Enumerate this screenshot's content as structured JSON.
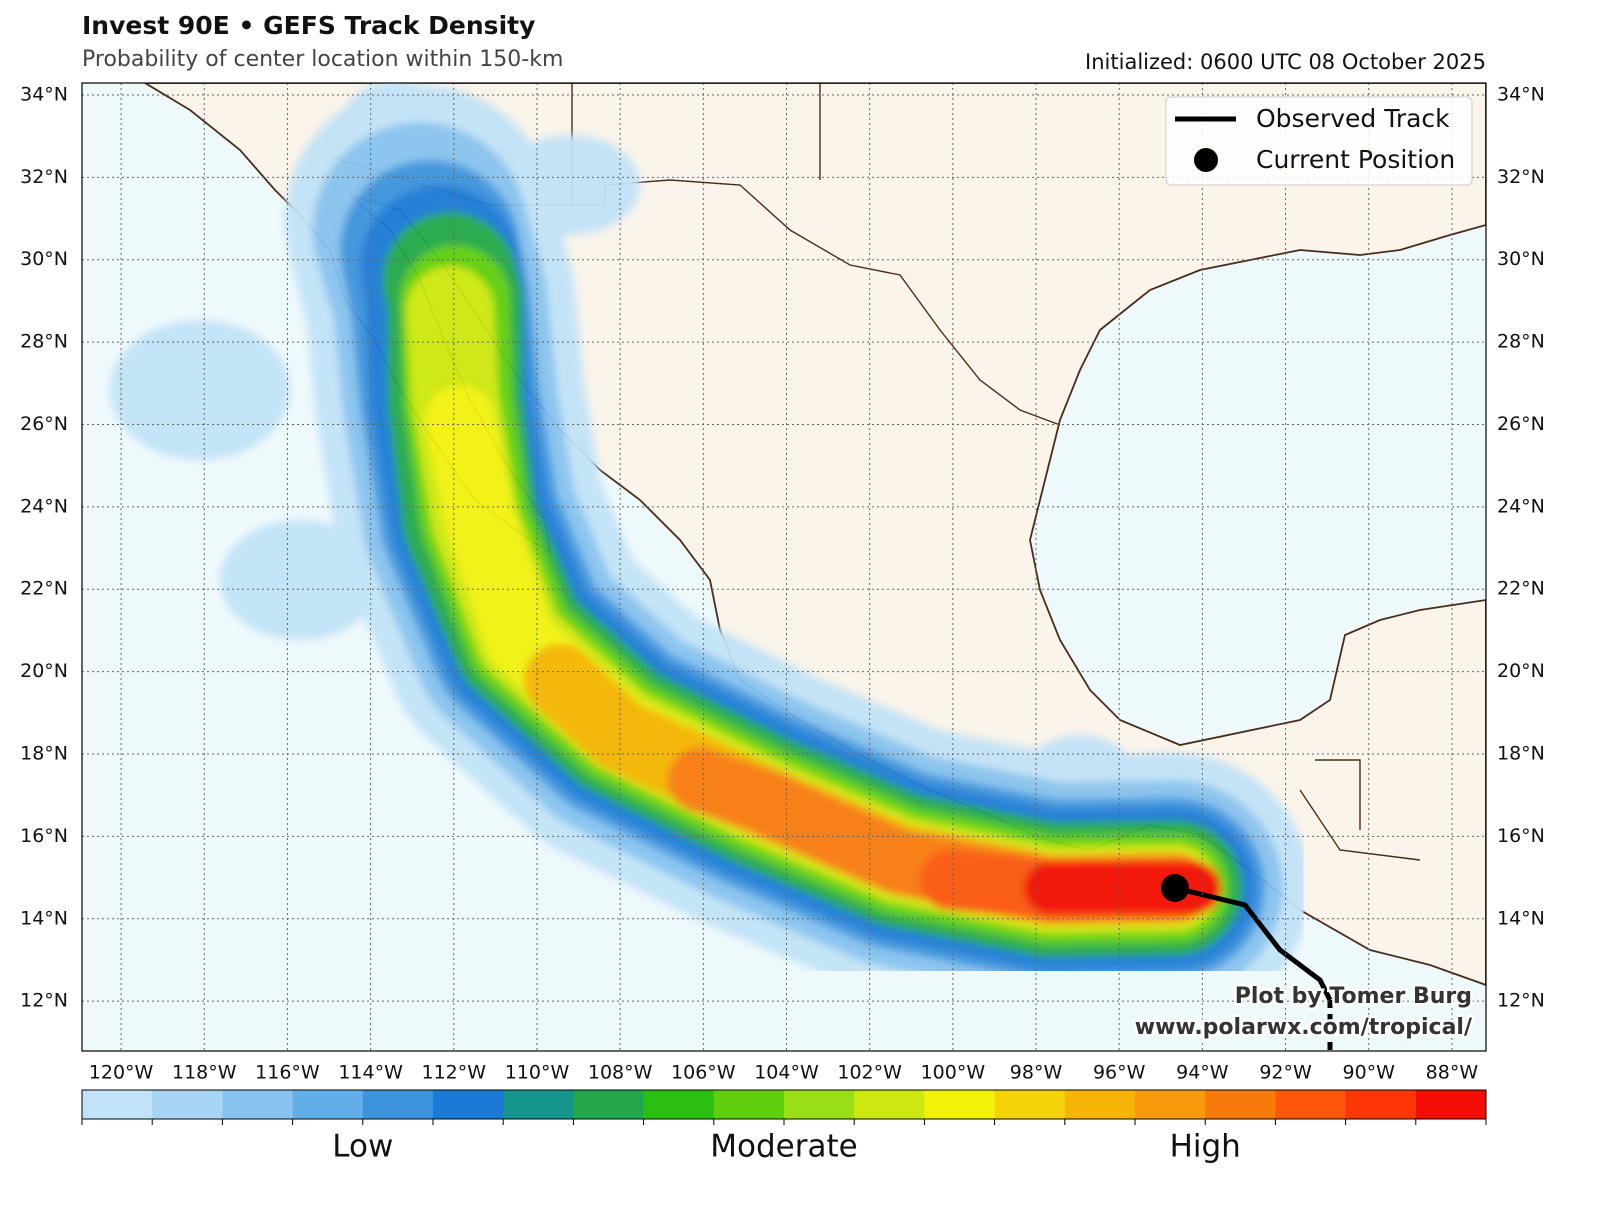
{
  "header": {
    "title": "Invest 90E • GEFS Track Density",
    "subtitle": "Probability of center location within 150-km",
    "initialized": "Initialized: 0600 UTC 08 October 2025"
  },
  "map": {
    "extent": {
      "lon": [
        -120.94,
        -87.18
      ],
      "lat": [
        10.79,
        34.29
      ]
    },
    "grid": true,
    "lat_ticks": [
      {
        "value": 12,
        "label": "12°N"
      },
      {
        "value": 14,
        "label": "14°N"
      },
      {
        "value": 16,
        "label": "16°N"
      },
      {
        "value": 18,
        "label": "18°N"
      },
      {
        "value": 20,
        "label": "20°N"
      },
      {
        "value": 22,
        "label": "22°N"
      },
      {
        "value": 24,
        "label": "24°N"
      },
      {
        "value": 26,
        "label": "26°N"
      },
      {
        "value": 28,
        "label": "28°N"
      },
      {
        "value": 30,
        "label": "30°N"
      },
      {
        "value": 32,
        "label": "32°N"
      },
      {
        "value": 34,
        "label": "34°N"
      }
    ],
    "lon_ticks": [
      {
        "value": -120,
        "label": "120°W"
      },
      {
        "value": -118,
        "label": "118°W"
      },
      {
        "value": -116,
        "label": "116°W"
      },
      {
        "value": -114,
        "label": "114°W"
      },
      {
        "value": -112,
        "label": "112°W"
      },
      {
        "value": -110,
        "label": "110°W"
      },
      {
        "value": -108,
        "label": "108°W"
      },
      {
        "value": -106,
        "label": "106°W"
      },
      {
        "value": -104,
        "label": "104°W"
      },
      {
        "value": -102,
        "label": "102°W"
      },
      {
        "value": -100,
        "label": "100°W"
      },
      {
        "value": -98,
        "label": "98°W"
      },
      {
        "value": -96,
        "label": "96°W"
      },
      {
        "value": -94,
        "label": "94°W"
      },
      {
        "value": -92,
        "label": "92°W"
      },
      {
        "value": -90,
        "label": "90°W"
      },
      {
        "value": -88,
        "label": "88°W"
      }
    ]
  },
  "legend": {
    "items": [
      "Observed Track",
      "Current Position"
    ]
  },
  "colorbar": {
    "colors": [
      "#c2e3f7",
      "#a8d5f4",
      "#87c3ef",
      "#62aee8",
      "#3d94dd",
      "#1a7ad6",
      "#14968c",
      "#22a84a",
      "#2bbf12",
      "#5fcf0b",
      "#9ade18",
      "#cde80f",
      "#f2f208",
      "#f5d20a",
      "#f5b406",
      "#f79a0c",
      "#f87a0a",
      "#fb560a",
      "#fd3606",
      "#f30d06"
    ],
    "labels": [
      "Low",
      "Moderate",
      "High"
    ]
  },
  "credit": [
    "Plot by Tomer Burg",
    "www.polarwx.com/tropical/"
  ]
}
